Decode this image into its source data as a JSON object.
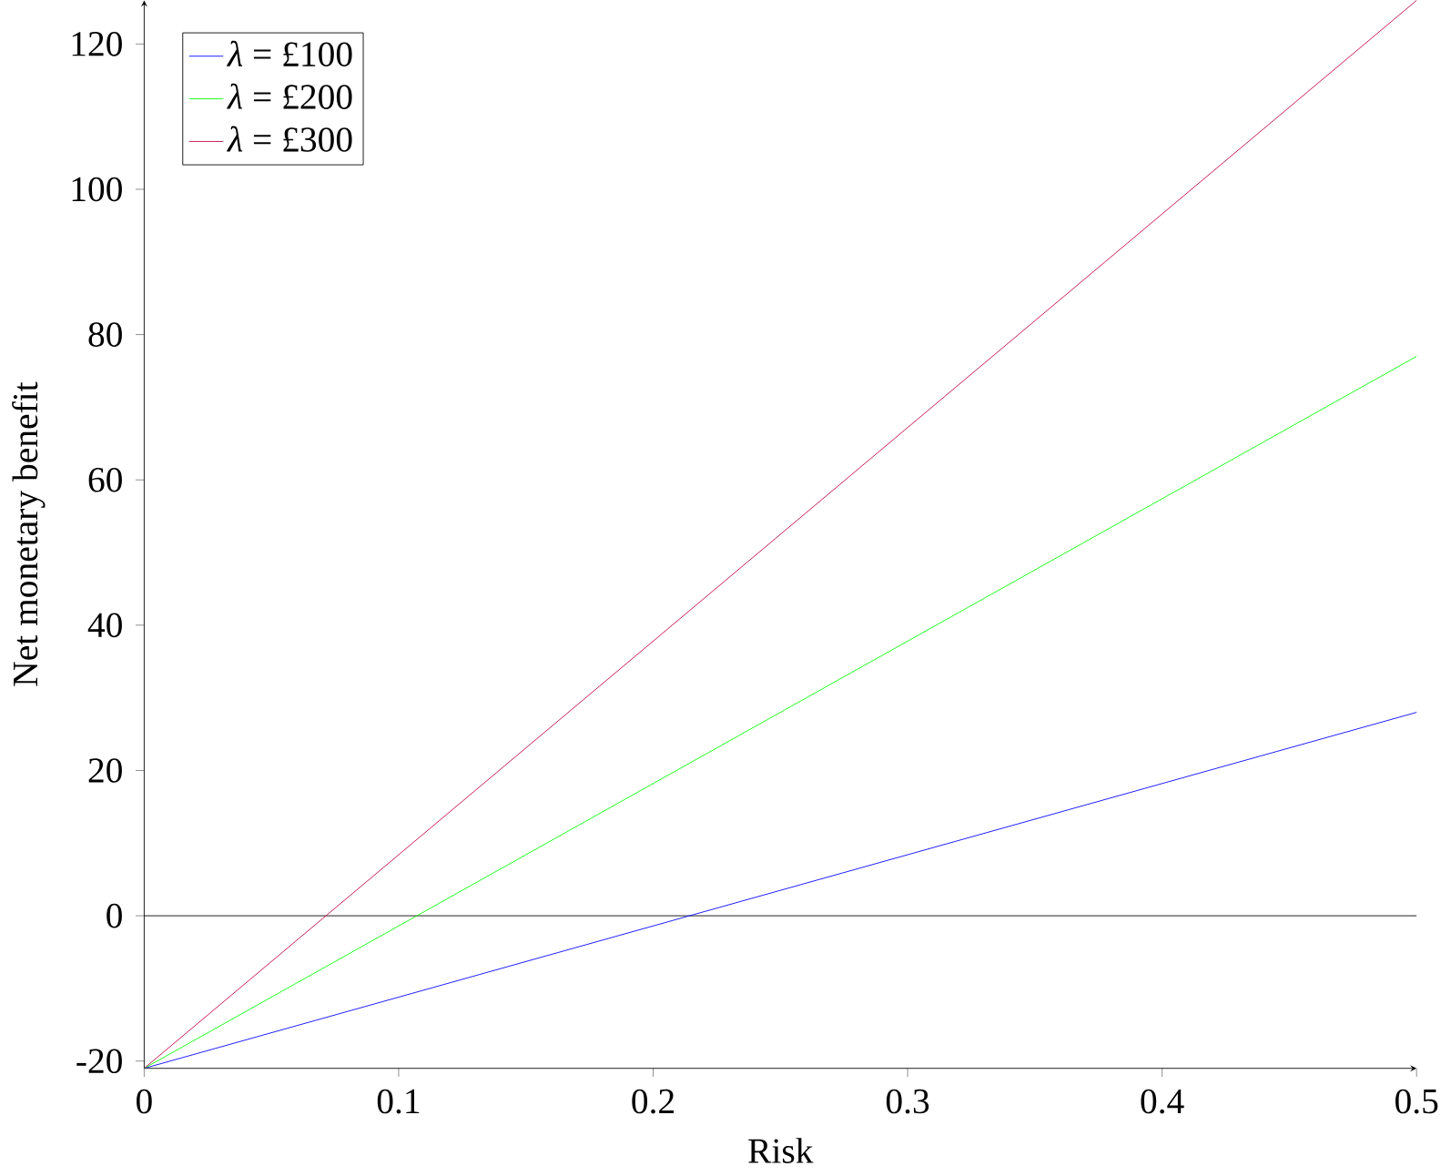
{
  "chart_data": {
    "type": "line",
    "xlabel": "Risk",
    "ylabel": "Net monetary benefit",
    "xlim": [
      0,
      0.5
    ],
    "ylim": [
      -21,
      126
    ],
    "xticks": [
      0,
      0.1,
      0.2,
      0.3,
      0.4,
      0.5
    ],
    "yticks": [
      -20,
      0,
      20,
      40,
      60,
      80,
      100,
      120
    ],
    "x": [
      0,
      0.5
    ],
    "series": [
      {
        "name": "*λ* = £100",
        "color": "#0000ff",
        "values": [
          -21,
          28
        ]
      },
      {
        "name": "*λ* = £200",
        "color": "#00ff00",
        "values": [
          -21,
          77
        ]
      },
      {
        "name": "*λ* = £300",
        "color": "#bf0040",
        "values": [
          -21,
          126
        ]
      }
    ],
    "ref_lines": [
      {
        "axis": "y",
        "value": 0,
        "color": "#000000"
      }
    ],
    "legend": "top left",
    "marker": "none",
    "line_style": "solid"
  }
}
